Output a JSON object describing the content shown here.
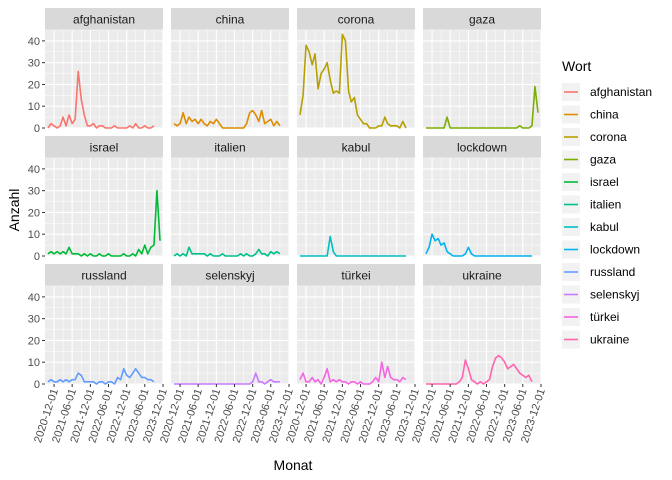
{
  "chart_data": {
    "type": "line",
    "facets": true,
    "xlabel": "Monat",
    "ylabel": "Anzahl",
    "ylim": [
      0,
      45
    ],
    "y_ticks": [
      0,
      10,
      20,
      30,
      40
    ],
    "x_range": [
      "2020-09-01",
      "2023-12-01"
    ],
    "x_tick_labels": [
      "2020-12-01",
      "2021-06-01",
      "2021-12-01",
      "2022-06-01",
      "2022-12-01",
      "2023-06-01",
      "2023-12-01"
    ],
    "legend": {
      "title": "Wort",
      "position": "right"
    },
    "grid": true,
    "series": [
      {
        "name": "afghanistan",
        "color": "#F8766D",
        "x": [
          "2020-10-01",
          "2020-11-01",
          "2020-12-01",
          "2021-01-01",
          "2021-02-01",
          "2021-03-01",
          "2021-04-01",
          "2021-05-01",
          "2021-06-01",
          "2021-07-01",
          "2021-08-01",
          "2021-09-01",
          "2021-10-01",
          "2021-11-01",
          "2021-12-01",
          "2022-01-01",
          "2022-02-01",
          "2022-03-01",
          "2022-04-01",
          "2022-05-01",
          "2022-06-01",
          "2022-07-01",
          "2022-08-01",
          "2022-09-01",
          "2022-10-01",
          "2022-11-01",
          "2022-12-01",
          "2023-01-01",
          "2023-02-01",
          "2023-03-01",
          "2023-04-01",
          "2023-05-01",
          "2023-06-01",
          "2023-07-01",
          "2023-08-01",
          "2023-09-01"
        ],
        "values": [
          0,
          2,
          1,
          0,
          1,
          5,
          1,
          6,
          2,
          4,
          26,
          13,
          6,
          1,
          1,
          2,
          0,
          1,
          1,
          0,
          0,
          0,
          1,
          0,
          0,
          0,
          0,
          1,
          0,
          2,
          0,
          0,
          1,
          0,
          0,
          1
        ]
      },
      {
        "name": "china",
        "color": "#DE8C00",
        "x": [
          "2020-10-01",
          "2020-11-01",
          "2020-12-01",
          "2021-01-01",
          "2021-02-01",
          "2021-03-01",
          "2021-04-01",
          "2021-05-01",
          "2021-06-01",
          "2021-07-01",
          "2021-08-01",
          "2021-09-01",
          "2021-10-01",
          "2021-11-01",
          "2021-12-01",
          "2022-01-01",
          "2022-02-01",
          "2022-03-01",
          "2022-04-01",
          "2022-05-01",
          "2022-06-01",
          "2022-07-01",
          "2022-08-01",
          "2022-09-01",
          "2022-10-01",
          "2022-11-01",
          "2022-12-01",
          "2023-01-01",
          "2023-02-01",
          "2023-03-01",
          "2023-04-01",
          "2023-05-01",
          "2023-06-01",
          "2023-07-01",
          "2023-08-01",
          "2023-09-01"
        ],
        "values": [
          2,
          1,
          2,
          7,
          2,
          5,
          3,
          4,
          2,
          4,
          2,
          1,
          3,
          2,
          4,
          2,
          0,
          0,
          0,
          0,
          0,
          0,
          0,
          0,
          2,
          7,
          8,
          6,
          3,
          8,
          2,
          3,
          4,
          1,
          3,
          1
        ]
      },
      {
        "name": "corona",
        "color": "#B79F00",
        "x": [
          "2020-10-01",
          "2020-11-01",
          "2020-12-01",
          "2021-01-01",
          "2021-02-01",
          "2021-03-01",
          "2021-04-01",
          "2021-05-01",
          "2021-06-01",
          "2021-07-01",
          "2021-08-01",
          "2021-09-01",
          "2021-10-01",
          "2021-11-01",
          "2021-12-01",
          "2022-01-01",
          "2022-02-01",
          "2022-03-01",
          "2022-04-01",
          "2022-05-01",
          "2022-06-01",
          "2022-07-01",
          "2022-08-01",
          "2022-09-01",
          "2022-10-01",
          "2022-11-01",
          "2022-12-01",
          "2023-01-01",
          "2023-02-01",
          "2023-03-01",
          "2023-04-01",
          "2023-05-01",
          "2023-06-01",
          "2023-07-01",
          "2023-08-01",
          "2023-09-01"
        ],
        "values": [
          6,
          15,
          38,
          35,
          29,
          34,
          18,
          25,
          27,
          30,
          22,
          16,
          17,
          16,
          43,
          40,
          17,
          12,
          14,
          6,
          4,
          2,
          2,
          0,
          0,
          0,
          1,
          1,
          5,
          2,
          1,
          1,
          1,
          0,
          3,
          0
        ]
      },
      {
        "name": "gaza",
        "color": "#7CAE00",
        "x": [
          "2020-10-01",
          "2020-11-01",
          "2020-12-01",
          "2021-01-01",
          "2021-02-01",
          "2021-03-01",
          "2021-04-01",
          "2021-05-01",
          "2021-06-01",
          "2021-07-01",
          "2021-08-01",
          "2021-09-01",
          "2021-10-01",
          "2021-11-01",
          "2021-12-01",
          "2022-01-01",
          "2022-02-01",
          "2022-03-01",
          "2022-04-01",
          "2022-05-01",
          "2022-06-01",
          "2022-07-01",
          "2022-08-01",
          "2022-09-01",
          "2022-10-01",
          "2022-11-01",
          "2022-12-01",
          "2023-01-01",
          "2023-02-01",
          "2023-03-01",
          "2023-04-01",
          "2023-05-01",
          "2023-06-01",
          "2023-07-01",
          "2023-08-01",
          "2023-09-01",
          "2023-10-01",
          "2023-11-01"
        ],
        "values": [
          0,
          0,
          0,
          0,
          0,
          0,
          0,
          5,
          0,
          0,
          0,
          0,
          0,
          0,
          0,
          0,
          0,
          0,
          0,
          0,
          0,
          0,
          0,
          0,
          0,
          0,
          0,
          0,
          0,
          0,
          0,
          1,
          0,
          0,
          0,
          1,
          19,
          7
        ]
      },
      {
        "name": "israel",
        "color": "#00BA38",
        "x": [
          "2020-10-01",
          "2020-11-01",
          "2020-12-01",
          "2021-01-01",
          "2021-02-01",
          "2021-03-01",
          "2021-04-01",
          "2021-05-01",
          "2021-06-01",
          "2021-07-01",
          "2021-08-01",
          "2021-09-01",
          "2021-10-01",
          "2021-11-01",
          "2021-12-01",
          "2022-01-01",
          "2022-02-01",
          "2022-03-01",
          "2022-04-01",
          "2022-05-01",
          "2022-06-01",
          "2022-07-01",
          "2022-08-01",
          "2022-09-01",
          "2022-10-01",
          "2022-11-01",
          "2022-12-01",
          "2023-01-01",
          "2023-02-01",
          "2023-03-01",
          "2023-04-01",
          "2023-05-01",
          "2023-06-01",
          "2023-07-01",
          "2023-08-01",
          "2023-09-01",
          "2023-10-01",
          "2023-11-01"
        ],
        "values": [
          1,
          2,
          1,
          2,
          1,
          2,
          1,
          4,
          1,
          1,
          1,
          0,
          1,
          0,
          1,
          0,
          0,
          1,
          0,
          0,
          1,
          0,
          0,
          0,
          0,
          1,
          0,
          0,
          1,
          0,
          3,
          1,
          5,
          1,
          4,
          5,
          30,
          7
        ]
      },
      {
        "name": "italien",
        "color": "#00C08B",
        "x": [
          "2020-10-01",
          "2020-11-01",
          "2020-12-01",
          "2021-01-01",
          "2021-02-01",
          "2021-03-01",
          "2021-04-01",
          "2021-05-01",
          "2021-06-01",
          "2021-07-01",
          "2021-08-01",
          "2021-09-01",
          "2021-10-01",
          "2021-11-01",
          "2021-12-01",
          "2022-01-01",
          "2022-02-01",
          "2022-03-01",
          "2022-04-01",
          "2022-05-01",
          "2022-06-01",
          "2022-07-01",
          "2022-08-01",
          "2022-09-01",
          "2022-10-01",
          "2022-11-01",
          "2022-12-01",
          "2023-01-01",
          "2023-02-01",
          "2023-03-01",
          "2023-04-01",
          "2023-05-01",
          "2023-06-01",
          "2023-07-01",
          "2023-08-01",
          "2023-09-01"
        ],
        "values": [
          0,
          1,
          0,
          1,
          0,
          4,
          1,
          1,
          1,
          1,
          1,
          0,
          1,
          0,
          0,
          0,
          1,
          0,
          0,
          0,
          0,
          0,
          1,
          0,
          1,
          0,
          0,
          1,
          3,
          1,
          1,
          0,
          2,
          1,
          2,
          1
        ]
      },
      {
        "name": "kabul",
        "color": "#00BFC4",
        "x": [
          "2020-10-01",
          "2020-11-01",
          "2020-12-01",
          "2021-01-01",
          "2021-02-01",
          "2021-03-01",
          "2021-04-01",
          "2021-05-01",
          "2021-06-01",
          "2021-07-01",
          "2021-08-01",
          "2021-09-01",
          "2021-10-01",
          "2021-11-01",
          "2021-12-01",
          "2022-01-01",
          "2022-02-01",
          "2022-03-01",
          "2022-04-01",
          "2022-05-01",
          "2022-06-01",
          "2022-07-01",
          "2022-08-01",
          "2022-09-01",
          "2022-10-01",
          "2022-11-01",
          "2022-12-01",
          "2023-01-01",
          "2023-02-01",
          "2023-03-01",
          "2023-04-01",
          "2023-05-01",
          "2023-06-01",
          "2023-07-01",
          "2023-08-01",
          "2023-09-01"
        ],
        "values": [
          0,
          0,
          0,
          0,
          0,
          0,
          0,
          0,
          0,
          0,
          9,
          2,
          0,
          0,
          0,
          0,
          0,
          0,
          0,
          0,
          0,
          0,
          0,
          0,
          0,
          0,
          0,
          0,
          0,
          0,
          0,
          0,
          0,
          0,
          0,
          0
        ]
      },
      {
        "name": "lockdown",
        "color": "#00B4F0",
        "x": [
          "2020-10-01",
          "2020-11-01",
          "2020-12-01",
          "2021-01-01",
          "2021-02-01",
          "2021-03-01",
          "2021-04-01",
          "2021-05-01",
          "2021-06-01",
          "2021-07-01",
          "2021-08-01",
          "2021-09-01",
          "2021-10-01",
          "2021-11-01",
          "2021-12-01",
          "2022-01-01",
          "2022-02-01",
          "2022-03-01",
          "2022-04-01",
          "2022-05-01",
          "2022-06-01",
          "2022-07-01",
          "2022-08-01",
          "2022-09-01",
          "2022-10-01",
          "2022-11-01",
          "2022-12-01",
          "2023-01-01",
          "2023-02-01",
          "2023-03-01",
          "2023-04-01",
          "2023-05-01",
          "2023-06-01",
          "2023-07-01",
          "2023-08-01",
          "2023-09-01"
        ],
        "values": [
          1,
          4,
          10,
          7,
          8,
          5,
          6,
          2,
          1,
          0,
          0,
          0,
          0,
          1,
          4,
          1,
          0,
          0,
          0,
          0,
          0,
          0,
          0,
          0,
          0,
          0,
          0,
          0,
          0,
          0,
          0,
          0,
          0,
          0,
          0,
          0
        ]
      },
      {
        "name": "russland",
        "color": "#619CFF",
        "x": [
          "2020-10-01",
          "2020-11-01",
          "2020-12-01",
          "2021-01-01",
          "2021-02-01",
          "2021-03-01",
          "2021-04-01",
          "2021-05-01",
          "2021-06-01",
          "2021-07-01",
          "2021-08-01",
          "2021-09-01",
          "2021-10-01",
          "2021-11-01",
          "2021-12-01",
          "2022-01-01",
          "2022-02-01",
          "2022-03-01",
          "2022-04-01",
          "2022-05-01",
          "2022-06-01",
          "2022-07-01",
          "2022-08-01",
          "2022-09-01",
          "2022-10-01",
          "2022-11-01",
          "2022-12-01",
          "2023-01-01",
          "2023-02-01",
          "2023-03-01",
          "2023-04-01",
          "2023-05-01",
          "2023-06-01",
          "2023-07-01",
          "2023-08-01",
          "2023-09-01"
        ],
        "values": [
          1,
          2,
          1,
          1,
          2,
          1,
          2,
          1,
          2,
          2,
          5,
          4,
          1,
          1,
          1,
          1,
          0,
          1,
          1,
          0,
          1,
          1,
          0,
          3,
          2,
          7,
          4,
          3,
          5,
          7,
          5,
          3,
          3,
          2,
          2,
          1
        ]
      },
      {
        "name": "selenskyj",
        "color": "#C77CFF",
        "x": [
          "2020-10-01",
          "2020-11-01",
          "2020-12-01",
          "2021-01-01",
          "2021-02-01",
          "2021-03-01",
          "2021-04-01",
          "2021-05-01",
          "2021-06-01",
          "2021-07-01",
          "2021-08-01",
          "2021-09-01",
          "2021-10-01",
          "2021-11-01",
          "2021-12-01",
          "2022-01-01",
          "2022-02-01",
          "2022-03-01",
          "2022-04-01",
          "2022-05-01",
          "2022-06-01",
          "2022-07-01",
          "2022-08-01",
          "2022-09-01",
          "2022-10-01",
          "2022-11-01",
          "2022-12-01",
          "2023-01-01",
          "2023-02-01",
          "2023-03-01",
          "2023-04-01",
          "2023-05-01",
          "2023-06-01",
          "2023-07-01",
          "2023-08-01",
          "2023-09-01"
        ],
        "values": [
          0,
          0,
          0,
          0,
          0,
          0,
          0,
          0,
          0,
          0,
          0,
          0,
          0,
          0,
          0,
          0,
          0,
          0,
          0,
          0,
          0,
          0,
          0,
          0,
          0,
          0,
          1,
          5,
          1,
          1,
          0,
          1,
          2,
          1,
          1,
          1
        ]
      },
      {
        "name": "türkei",
        "color": "#F564E3",
        "x": [
          "2020-10-01",
          "2020-11-01",
          "2020-12-01",
          "2021-01-01",
          "2021-02-01",
          "2021-03-01",
          "2021-04-01",
          "2021-05-01",
          "2021-06-01",
          "2021-07-01",
          "2021-08-01",
          "2021-09-01",
          "2021-10-01",
          "2021-11-01",
          "2021-12-01",
          "2022-01-01",
          "2022-02-01",
          "2022-03-01",
          "2022-04-01",
          "2022-05-01",
          "2022-06-01",
          "2022-07-01",
          "2022-08-01",
          "2022-09-01",
          "2022-10-01",
          "2022-11-01",
          "2022-12-01",
          "2023-01-01",
          "2023-02-01",
          "2023-03-01",
          "2023-04-01",
          "2023-05-01",
          "2023-06-01",
          "2023-07-01",
          "2023-08-01",
          "2023-09-01"
        ],
        "values": [
          2,
          5,
          1,
          1,
          3,
          1,
          2,
          0,
          3,
          7,
          1,
          2,
          1,
          2,
          1,
          1,
          0,
          1,
          1,
          0,
          1,
          0,
          0,
          0,
          1,
          3,
          1,
          10,
          3,
          8,
          3,
          2,
          2,
          1,
          3,
          2
        ]
      },
      {
        "name": "ukraine",
        "color": "#FF64B0",
        "x": [
          "2020-10-01",
          "2020-11-01",
          "2020-12-01",
          "2021-01-01",
          "2021-02-01",
          "2021-03-01",
          "2021-04-01",
          "2021-05-01",
          "2021-06-01",
          "2021-07-01",
          "2021-08-01",
          "2021-09-01",
          "2021-10-01",
          "2021-11-01",
          "2021-12-01",
          "2022-01-01",
          "2022-02-01",
          "2022-03-01",
          "2022-04-01",
          "2022-05-01",
          "2022-06-01",
          "2022-07-01",
          "2022-08-01",
          "2022-09-01",
          "2022-10-01",
          "2022-11-01",
          "2022-12-01",
          "2023-01-01",
          "2023-02-01",
          "2023-03-01",
          "2023-04-01",
          "2023-05-01",
          "2023-06-01",
          "2023-07-01",
          "2023-08-01",
          "2023-09-01"
        ],
        "values": [
          0,
          0,
          0,
          0,
          0,
          0,
          0,
          0,
          0,
          0,
          0,
          1,
          3,
          11,
          7,
          2,
          1,
          0,
          1,
          0,
          1,
          2,
          8,
          12,
          13,
          12,
          10,
          7,
          8,
          9,
          7,
          5,
          4,
          3,
          4,
          1
        ]
      }
    ]
  }
}
